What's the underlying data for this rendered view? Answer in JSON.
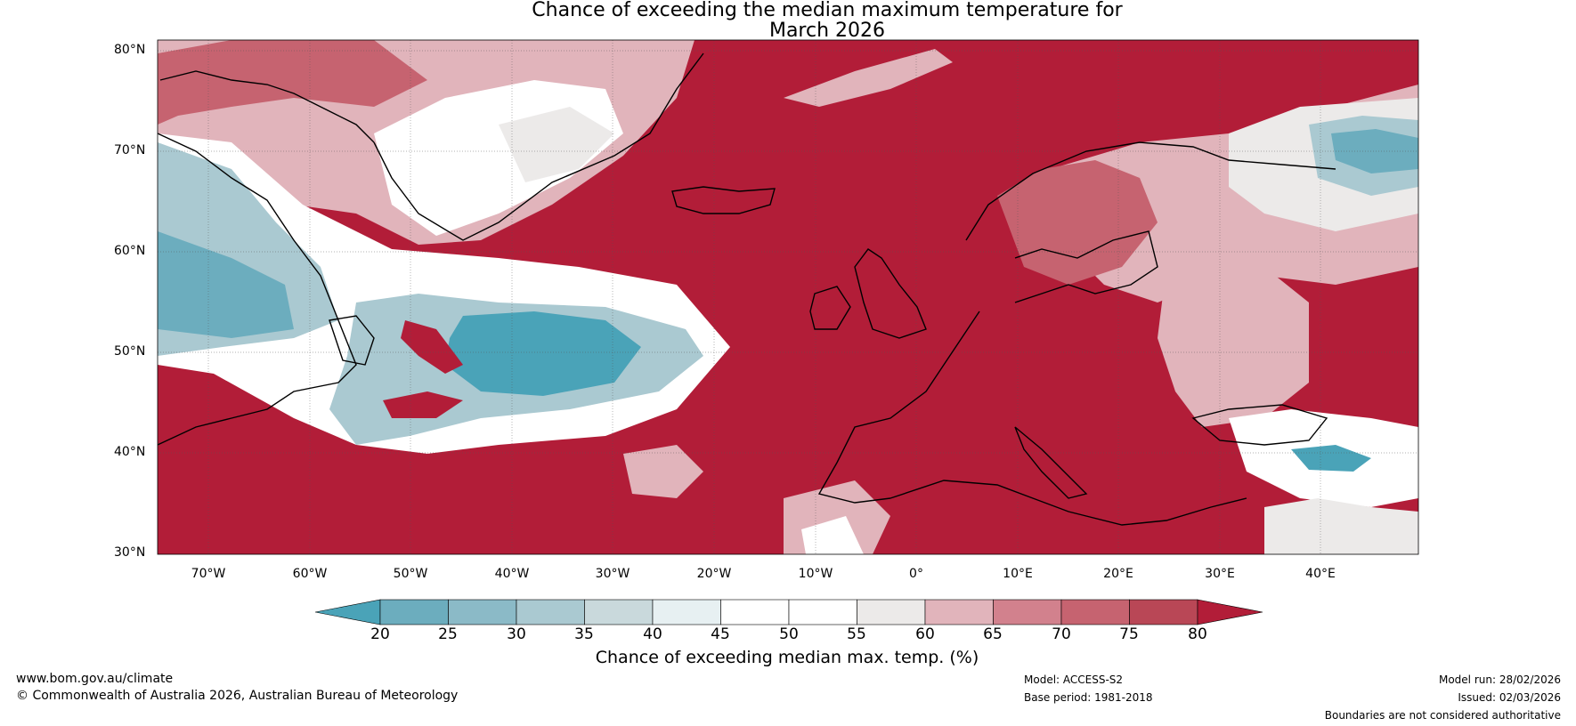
{
  "title_line1": "Chance of exceeding the median maximum temperature for",
  "title_line2": "March 2026",
  "lat_labels": [
    "80°N",
    "70°N",
    "60°N",
    "50°N",
    "40°N",
    "30°N"
  ],
  "lon_labels": [
    "70°W",
    "60°W",
    "50°W",
    "40°W",
    "30°W",
    "20°W",
    "10°W",
    "0°",
    "10°E",
    "20°E",
    "30°E",
    "40°E"
  ],
  "colorbar": {
    "ticks": [
      "20",
      "25",
      "30",
      "35",
      "40",
      "45",
      "50",
      "55",
      "60",
      "65",
      "70",
      "75",
      "80"
    ],
    "colors": [
      "#4aa3b8",
      "#6cadbe",
      "#8bbac7",
      "#aac9d1",
      "#c9d9dc",
      "#e7f0f2",
      "#ffffff",
      "#ffffff",
      "#eceae9",
      "#e1b4bb",
      "#d2818d",
      "#c66370",
      "#b94756",
      "#b21d38"
    ],
    "label": "Chance of exceeding median max. temp. (%)"
  },
  "footer": {
    "website": "www.bom.gov.au/climate",
    "copyright": "© Commonwealth of Australia 2026, Australian Bureau of Meteorology",
    "model": "Model: ACCESS-S2",
    "base_period": "Base period: 1981-2018",
    "model_run": "Model run: 28/02/2026",
    "issued": "Issued: 02/03/2026",
    "disclaimer": "Boundaries are not considered authoritative"
  },
  "map_colors": {
    "above": "#b21d38",
    "red2": "#c66370",
    "pink": "#e1b4bb",
    "light": "#eceae9",
    "white": "#ffffff",
    "blue1": "#aac9d1",
    "blue2": "#6cadbe",
    "blue3": "#4aa3b8"
  }
}
